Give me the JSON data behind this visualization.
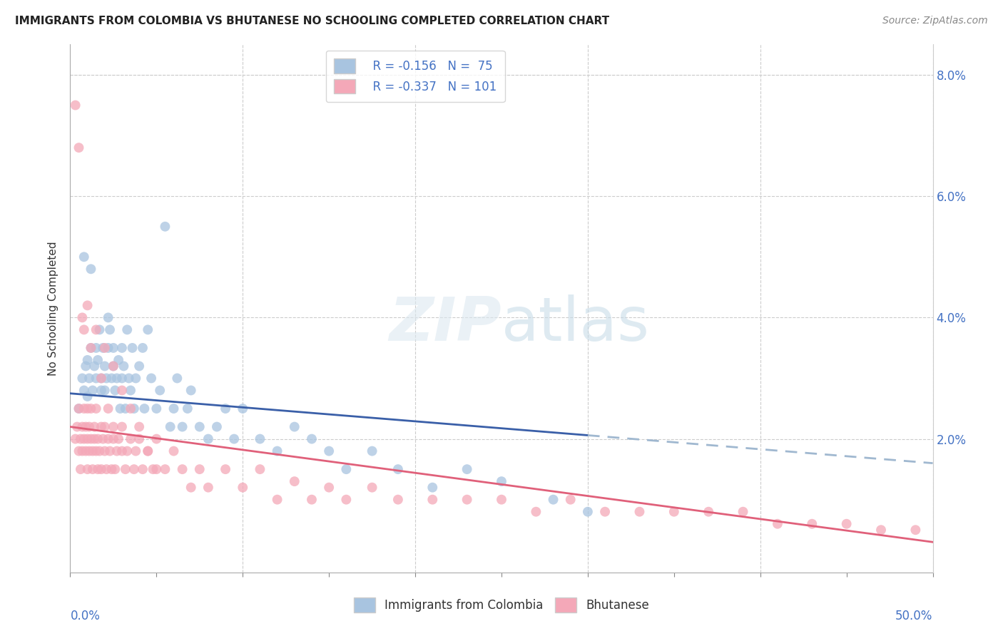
{
  "title": "IMMIGRANTS FROM COLOMBIA VS BHUTANESE NO SCHOOLING COMPLETED CORRELATION CHART",
  "source": "Source: ZipAtlas.com",
  "ylabel": "No Schooling Completed",
  "right_yticks": [
    0.0,
    0.02,
    0.04,
    0.06,
    0.08
  ],
  "right_yticklabels": [
    "",
    "2.0%",
    "4.0%",
    "6.0%",
    "8.0%"
  ],
  "xlim": [
    0.0,
    0.5
  ],
  "ylim": [
    -0.002,
    0.085
  ],
  "colombia_color": "#a8c4e0",
  "bhutanese_color": "#f4a8b8",
  "colombia_line_color": "#3a5fa8",
  "bhutanese_line_color": "#e0607a",
  "dashed_line_color": "#a0b8d0",
  "watermark": "ZIPatlas",
  "legend_R1": "R = -0.156",
  "legend_N1": "N =  75",
  "legend_R2": "R = -0.337",
  "legend_N2": "N = 101",
  "colombia_x": [
    0.005,
    0.007,
    0.008,
    0.009,
    0.01,
    0.01,
    0.011,
    0.012,
    0.013,
    0.014,
    0.015,
    0.015,
    0.016,
    0.017,
    0.018,
    0.018,
    0.019,
    0.02,
    0.02,
    0.021,
    0.022,
    0.022,
    0.023,
    0.024,
    0.025,
    0.025,
    0.026,
    0.027,
    0.028,
    0.029,
    0.03,
    0.03,
    0.031,
    0.032,
    0.033,
    0.034,
    0.035,
    0.036,
    0.037,
    0.038,
    0.04,
    0.042,
    0.043,
    0.045,
    0.047,
    0.05,
    0.052,
    0.055,
    0.058,
    0.06,
    0.062,
    0.065,
    0.068,
    0.07,
    0.075,
    0.08,
    0.085,
    0.09,
    0.095,
    0.1,
    0.11,
    0.12,
    0.13,
    0.14,
    0.15,
    0.16,
    0.175,
    0.19,
    0.21,
    0.23,
    0.25,
    0.28,
    0.3,
    0.008,
    0.012
  ],
  "colombia_y": [
    0.025,
    0.03,
    0.028,
    0.032,
    0.027,
    0.033,
    0.03,
    0.035,
    0.028,
    0.032,
    0.03,
    0.035,
    0.033,
    0.038,
    0.03,
    0.028,
    0.035,
    0.032,
    0.028,
    0.03,
    0.04,
    0.035,
    0.038,
    0.03,
    0.035,
    0.032,
    0.028,
    0.03,
    0.033,
    0.025,
    0.035,
    0.03,
    0.032,
    0.025,
    0.038,
    0.03,
    0.028,
    0.035,
    0.025,
    0.03,
    0.032,
    0.035,
    0.025,
    0.038,
    0.03,
    0.025,
    0.028,
    0.055,
    0.022,
    0.025,
    0.03,
    0.022,
    0.025,
    0.028,
    0.022,
    0.02,
    0.022,
    0.025,
    0.02,
    0.025,
    0.02,
    0.018,
    0.022,
    0.02,
    0.018,
    0.015,
    0.018,
    0.015,
    0.012,
    0.015,
    0.013,
    0.01,
    0.008,
    0.05,
    0.048
  ],
  "bhutanese_x": [
    0.003,
    0.004,
    0.005,
    0.005,
    0.006,
    0.006,
    0.007,
    0.007,
    0.008,
    0.008,
    0.009,
    0.009,
    0.01,
    0.01,
    0.01,
    0.011,
    0.011,
    0.012,
    0.012,
    0.013,
    0.013,
    0.014,
    0.014,
    0.015,
    0.015,
    0.016,
    0.016,
    0.017,
    0.018,
    0.018,
    0.019,
    0.02,
    0.02,
    0.021,
    0.022,
    0.022,
    0.023,
    0.024,
    0.025,
    0.025,
    0.026,
    0.027,
    0.028,
    0.03,
    0.03,
    0.032,
    0.033,
    0.035,
    0.037,
    0.038,
    0.04,
    0.042,
    0.045,
    0.048,
    0.05,
    0.055,
    0.06,
    0.065,
    0.07,
    0.075,
    0.08,
    0.09,
    0.1,
    0.11,
    0.12,
    0.13,
    0.14,
    0.15,
    0.16,
    0.175,
    0.19,
    0.21,
    0.23,
    0.25,
    0.27,
    0.29,
    0.31,
    0.33,
    0.35,
    0.37,
    0.39,
    0.41,
    0.43,
    0.45,
    0.47,
    0.49,
    0.003,
    0.005,
    0.007,
    0.008,
    0.01,
    0.012,
    0.015,
    0.018,
    0.02,
    0.025,
    0.03,
    0.035,
    0.04,
    0.045,
    0.05
  ],
  "bhutanese_y": [
    0.02,
    0.022,
    0.018,
    0.025,
    0.02,
    0.015,
    0.022,
    0.018,
    0.02,
    0.025,
    0.018,
    0.022,
    0.025,
    0.02,
    0.015,
    0.022,
    0.018,
    0.025,
    0.02,
    0.018,
    0.015,
    0.02,
    0.022,
    0.018,
    0.025,
    0.02,
    0.015,
    0.018,
    0.022,
    0.015,
    0.02,
    0.018,
    0.022,
    0.015,
    0.02,
    0.025,
    0.018,
    0.015,
    0.02,
    0.022,
    0.015,
    0.018,
    0.02,
    0.018,
    0.022,
    0.015,
    0.018,
    0.02,
    0.015,
    0.018,
    0.02,
    0.015,
    0.018,
    0.015,
    0.02,
    0.015,
    0.018,
    0.015,
    0.012,
    0.015,
    0.012,
    0.015,
    0.012,
    0.015,
    0.01,
    0.013,
    0.01,
    0.012,
    0.01,
    0.012,
    0.01,
    0.01,
    0.01,
    0.01,
    0.008,
    0.01,
    0.008,
    0.008,
    0.008,
    0.008,
    0.008,
    0.006,
    0.006,
    0.006,
    0.005,
    0.005,
    0.075,
    0.068,
    0.04,
    0.038,
    0.042,
    0.035,
    0.038,
    0.03,
    0.035,
    0.032,
    0.028,
    0.025,
    0.022,
    0.018,
    0.015
  ]
}
